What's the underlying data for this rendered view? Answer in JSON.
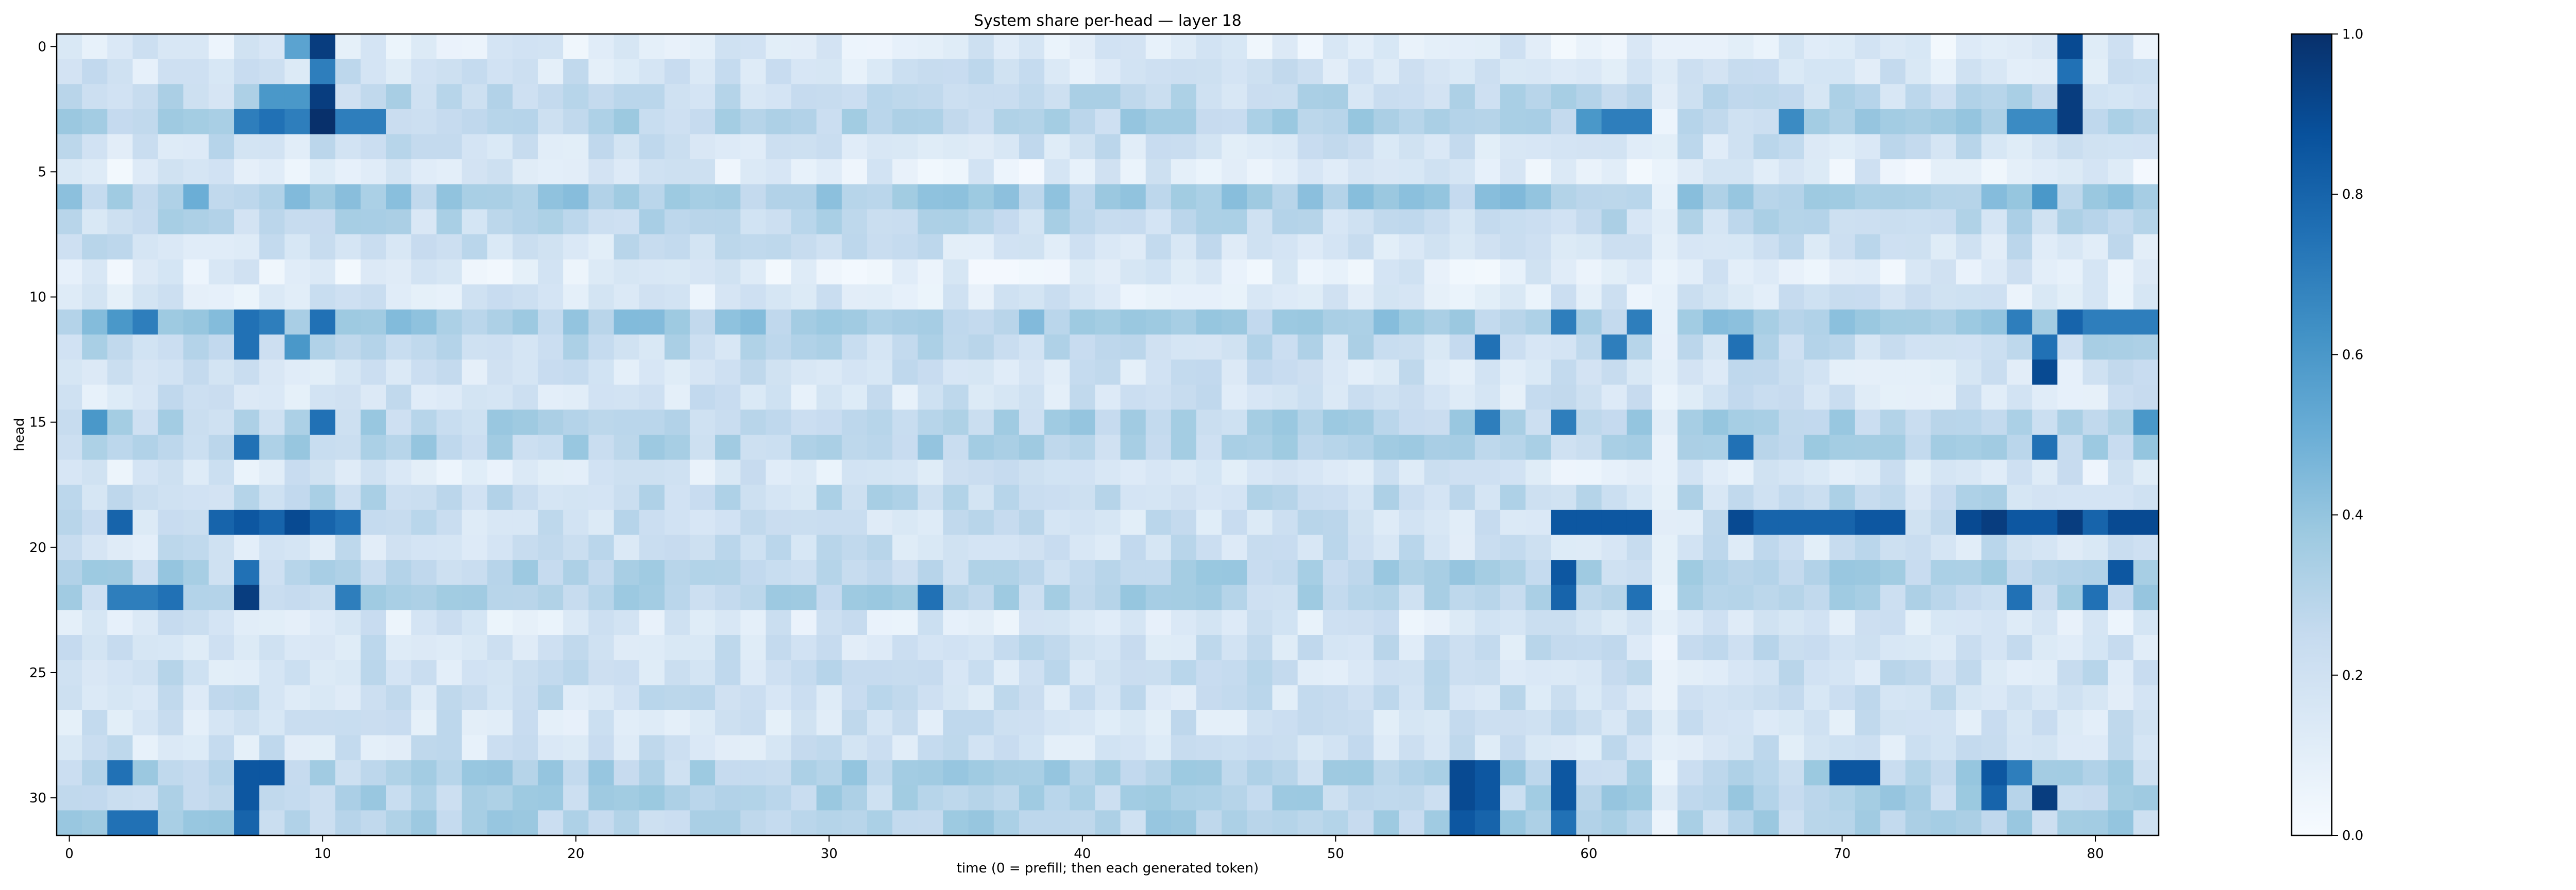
{
  "chart_data": {
    "type": "heatmap",
    "title": "System share per-head — layer 18",
    "xlabel": "time (0 = prefill; then each generated token)",
    "ylabel": "head",
    "x_range": [
      0,
      82
    ],
    "y_range": [
      0,
      31
    ],
    "x_ticks": [
      "0",
      "10",
      "20",
      "30",
      "40",
      "50",
      "60",
      "70",
      "80"
    ],
    "y_ticks": [
      "0",
      "5",
      "10",
      "15",
      "20",
      "25",
      "30"
    ],
    "colorbar": {
      "range": [
        0.0,
        1.0
      ],
      "ticks": [
        "0.0",
        "0.2",
        "0.4",
        "0.6",
        "0.8",
        "1.0"
      ],
      "colormap": "Blues"
    },
    "colors": {
      "low": "#f7fbff",
      "high": "#08306b"
    },
    "cell_values_estimated": [
      {
        "head": 0,
        "t": 9,
        "value": 0.55
      },
      {
        "head": 0,
        "t": 10,
        "value": 0.95
      },
      {
        "head": 0,
        "t": 79,
        "value": 0.9
      },
      {
        "head": 1,
        "t": 10,
        "value": 0.7
      },
      {
        "head": 1,
        "t": 79,
        "value": 0.75
      },
      {
        "head": 2,
        "t": 8,
        "value": 0.6
      },
      {
        "head": 2,
        "t": 9,
        "value": 0.6
      },
      {
        "head": 2,
        "t": 10,
        "value": 0.95
      },
      {
        "head": 2,
        "t": 79,
        "value": 0.95
      },
      {
        "head": 3,
        "t": 7,
        "value": 0.7
      },
      {
        "head": 3,
        "t": 8,
        "value": 0.75
      },
      {
        "head": 3,
        "t": 9,
        "value": 0.7
      },
      {
        "head": 3,
        "t": 10,
        "value": 1.0
      },
      {
        "head": 3,
        "t": 11,
        "value": 0.7
      },
      {
        "head": 3,
        "t": 12,
        "value": 0.7
      },
      {
        "head": 3,
        "t": 60,
        "value": 0.6
      },
      {
        "head": 3,
        "t": 61,
        "value": 0.7
      },
      {
        "head": 3,
        "t": 62,
        "value": 0.7
      },
      {
        "head": 3,
        "t": 68,
        "value": 0.65
      },
      {
        "head": 3,
        "t": 77,
        "value": 0.65
      },
      {
        "head": 3,
        "t": 78,
        "value": 0.65
      },
      {
        "head": 3,
        "t": 79,
        "value": 0.95
      },
      {
        "head": 6,
        "t": 5,
        "value": 0.5
      },
      {
        "head": 6,
        "t": 78,
        "value": 0.6
      },
      {
        "head": 11,
        "t": 2,
        "value": 0.6
      },
      {
        "head": 11,
        "t": 3,
        "value": 0.7
      },
      {
        "head": 11,
        "t": 7,
        "value": 0.75
      },
      {
        "head": 11,
        "t": 8,
        "value": 0.7
      },
      {
        "head": 11,
        "t": 10,
        "value": 0.75
      },
      {
        "head": 11,
        "t": 59,
        "value": 0.7
      },
      {
        "head": 11,
        "t": 62,
        "value": 0.7
      },
      {
        "head": 11,
        "t": 77,
        "value": 0.7
      },
      {
        "head": 11,
        "t": 79,
        "value": 0.8
      },
      {
        "head": 11,
        "t": 80,
        "value": 0.7
      },
      {
        "head": 11,
        "t": 81,
        "value": 0.7
      },
      {
        "head": 11,
        "t": 82,
        "value": 0.7
      },
      {
        "head": 12,
        "t": 7,
        "value": 0.75
      },
      {
        "head": 12,
        "t": 9,
        "value": 0.6
      },
      {
        "head": 12,
        "t": 56,
        "value": 0.75
      },
      {
        "head": 12,
        "t": 61,
        "value": 0.7
      },
      {
        "head": 12,
        "t": 66,
        "value": 0.75
      },
      {
        "head": 12,
        "t": 78,
        "value": 0.75
      },
      {
        "head": 13,
        "t": 78,
        "value": 0.9
      },
      {
        "head": 15,
        "t": 1,
        "value": 0.6
      },
      {
        "head": 15,
        "t": 10,
        "value": 0.75
      },
      {
        "head": 15,
        "t": 56,
        "value": 0.7
      },
      {
        "head": 15,
        "t": 59,
        "value": 0.7
      },
      {
        "head": 15,
        "t": 82,
        "value": 0.6
      },
      {
        "head": 16,
        "t": 7,
        "value": 0.75
      },
      {
        "head": 16,
        "t": 66,
        "value": 0.75
      },
      {
        "head": 16,
        "t": 78,
        "value": 0.75
      },
      {
        "head": 19,
        "t": 2,
        "value": 0.8
      },
      {
        "head": 19,
        "t": 6,
        "value": 0.8
      },
      {
        "head": 19,
        "t": 7,
        "value": 0.85
      },
      {
        "head": 19,
        "t": 8,
        "value": 0.8
      },
      {
        "head": 19,
        "t": 9,
        "value": 0.9
      },
      {
        "head": 19,
        "t": 10,
        "value": 0.8
      },
      {
        "head": 19,
        "t": 11,
        "value": 0.75
      },
      {
        "head": 19,
        "t": 59,
        "value": 0.85
      },
      {
        "head": 19,
        "t": 60,
        "value": 0.85
      },
      {
        "head": 19,
        "t": 61,
        "value": 0.85
      },
      {
        "head": 19,
        "t": 62,
        "value": 0.85
      },
      {
        "head": 19,
        "t": 66,
        "value": 0.9
      },
      {
        "head": 19,
        "t": 67,
        "value": 0.8
      },
      {
        "head": 19,
        "t": 68,
        "value": 0.8
      },
      {
        "head": 19,
        "t": 69,
        "value": 0.8
      },
      {
        "head": 19,
        "t": 70,
        "value": 0.8
      },
      {
        "head": 19,
        "t": 71,
        "value": 0.85
      },
      {
        "head": 19,
        "t": 72,
        "value": 0.85
      },
      {
        "head": 19,
        "t": 75,
        "value": 0.9
      },
      {
        "head": 19,
        "t": 76,
        "value": 0.95
      },
      {
        "head": 19,
        "t": 77,
        "value": 0.85
      },
      {
        "head": 19,
        "t": 78,
        "value": 0.85
      },
      {
        "head": 19,
        "t": 79,
        "value": 0.95
      },
      {
        "head": 19,
        "t": 80,
        "value": 0.8
      },
      {
        "head": 19,
        "t": 81,
        "value": 0.9
      },
      {
        "head": 19,
        "t": 82,
        "value": 0.9
      },
      {
        "head": 21,
        "t": 7,
        "value": 0.75
      },
      {
        "head": 21,
        "t": 59,
        "value": 0.85
      },
      {
        "head": 21,
        "t": 81,
        "value": 0.85
      },
      {
        "head": 22,
        "t": 2,
        "value": 0.7
      },
      {
        "head": 22,
        "t": 3,
        "value": 0.7
      },
      {
        "head": 22,
        "t": 4,
        "value": 0.75
      },
      {
        "head": 22,
        "t": 7,
        "value": 0.95
      },
      {
        "head": 22,
        "t": 11,
        "value": 0.7
      },
      {
        "head": 22,
        "t": 34,
        "value": 0.75
      },
      {
        "head": 22,
        "t": 59,
        "value": 0.8
      },
      {
        "head": 22,
        "t": 62,
        "value": 0.75
      },
      {
        "head": 22,
        "t": 77,
        "value": 0.75
      },
      {
        "head": 22,
        "t": 80,
        "value": 0.75
      },
      {
        "head": 29,
        "t": 2,
        "value": 0.75
      },
      {
        "head": 29,
        "t": 7,
        "value": 0.85
      },
      {
        "head": 29,
        "t": 8,
        "value": 0.85
      },
      {
        "head": 29,
        "t": 55,
        "value": 0.9
      },
      {
        "head": 29,
        "t": 56,
        "value": 0.85
      },
      {
        "head": 29,
        "t": 59,
        "value": 0.85
      },
      {
        "head": 29,
        "t": 70,
        "value": 0.85
      },
      {
        "head": 29,
        "t": 71,
        "value": 0.85
      },
      {
        "head": 29,
        "t": 76,
        "value": 0.85
      },
      {
        "head": 29,
        "t": 77,
        "value": 0.7
      },
      {
        "head": 30,
        "t": 7,
        "value": 0.85
      },
      {
        "head": 30,
        "t": 55,
        "value": 0.9
      },
      {
        "head": 30,
        "t": 56,
        "value": 0.85
      },
      {
        "head": 30,
        "t": 59,
        "value": 0.85
      },
      {
        "head": 30,
        "t": 76,
        "value": 0.8
      },
      {
        "head": 30,
        "t": 78,
        "value": 0.95
      },
      {
        "head": 31,
        "t": 2,
        "value": 0.75
      },
      {
        "head": 31,
        "t": 3,
        "value": 0.75
      },
      {
        "head": 31,
        "t": 7,
        "value": 0.8
      },
      {
        "head": 31,
        "t": 55,
        "value": 0.85
      },
      {
        "head": 31,
        "t": 56,
        "value": 0.8
      },
      {
        "head": 31,
        "t": 59,
        "value": 0.75
      }
    ],
    "background_value_by_head": [
      0.12,
      0.18,
      0.25,
      0.3,
      0.2,
      0.12,
      0.35,
      0.25,
      0.2,
      0.12,
      0.15,
      0.35,
      0.25,
      0.18,
      0.18,
      0.3,
      0.3,
      0.15,
      0.25,
      0.2,
      0.2,
      0.3,
      0.3,
      0.15,
      0.2,
      0.2,
      0.2,
      0.18,
      0.18,
      0.3,
      0.3,
      0.3
    ],
    "low_value_columns": [
      63
    ],
    "grid": false
  }
}
